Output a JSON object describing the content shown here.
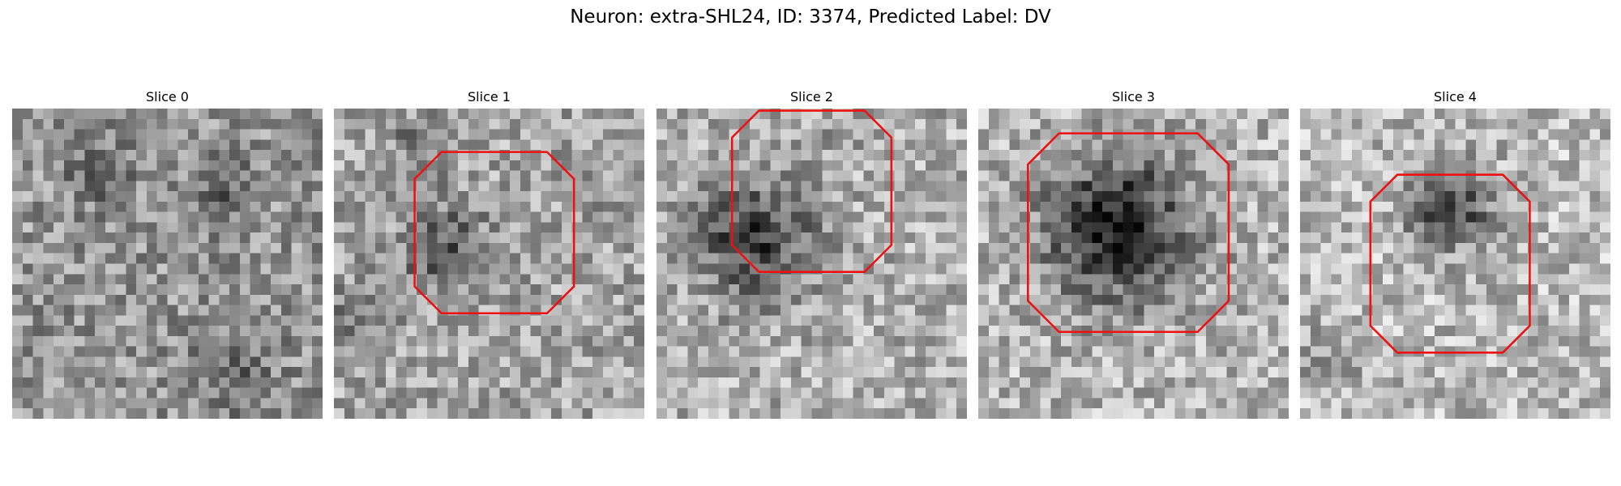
{
  "figure": {
    "title": "Neuron: extra-SHL24, ID: 3374, Predicted Label: DV"
  },
  "panels": [
    {
      "title": "Slice 0",
      "contour": "none"
    },
    {
      "title": "Slice 1",
      "contour": "present"
    },
    {
      "title": "Slice 2",
      "contour": "present"
    },
    {
      "title": "Slice 3",
      "contour": "present"
    },
    {
      "title": "Slice 4",
      "contour": "present"
    }
  ],
  "colors": {
    "contour": "#ee1111",
    "background": "#ffffff",
    "colormap": "gray"
  }
}
